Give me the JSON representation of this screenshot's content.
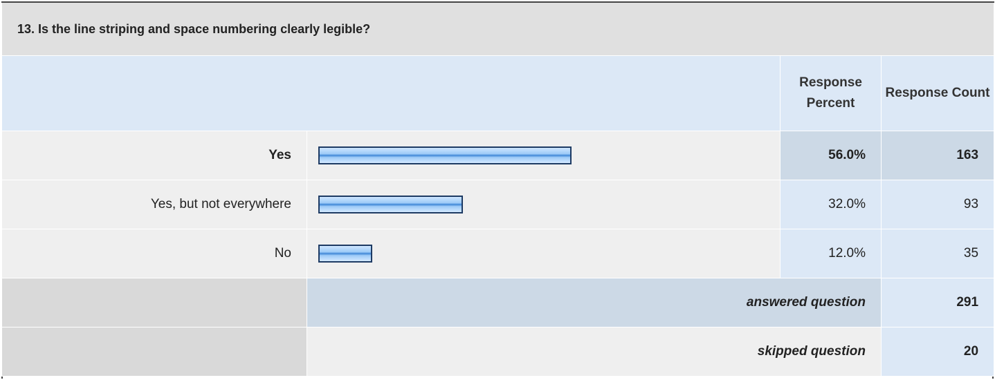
{
  "question": "13. Is the line striping and space numbering clearly legible?",
  "headers": [
    "Response Percent",
    "Response Count"
  ],
  "table": {
    "categories": [
      "Yes",
      "Yes, but not everywhere",
      "No"
    ],
    "values": [
      56,
      32,
      12
    ],
    "value_labels": [
      "56.0%",
      "32.0%",
      "12.0%"
    ],
    "counts": [
      163,
      93,
      35
    ],
    "xlim": [
      0,
      100
    ]
  },
  "answered": {
    "label": "answered question",
    "value": 291
  },
  "skipped": {
    "label": "skipped question",
    "value": 20
  }
}
